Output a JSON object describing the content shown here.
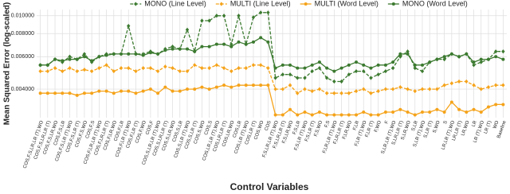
{
  "chart_data": {
    "type": "line",
    "x_label": "Control Variables",
    "y_label": "Mean Squared Error (log-scaled)",
    "log_y": true,
    "grid": true,
    "legend": "top",
    "ylim": [
      0.0028,
      0.0108
    ],
    "yticks": [
      {
        "value": 0.004,
        "label": "0.004000"
      },
      {
        "value": 0.006,
        "label": "0.006000"
      },
      {
        "value": 0.008,
        "label": "0.008000"
      },
      {
        "value": 0.01,
        "label": "0.010000"
      }
    ],
    "categories": [
      "COS,F,S,LR,LR (T),WO",
      "COS,F,S,LR,LR (T)",
      "COS,F,S,LR,WO",
      "COS,F,S,LR",
      "COS,F,S,LR (T),WO",
      "COS,F,S,LR (T)",
      "COS,F,S,WO",
      "COS,F,S",
      "COS,F,LR,LR (T),WO",
      "COS,F,LR,LR (T)",
      "COS,F,LR,WO",
      "COS,F,LR",
      "COS,F,LR (T),WO",
      "COS,F,LR (T)",
      "COS,F,WO",
      "COS,F",
      "COS,S,LR,LR (T),WO",
      "COS,S,LR,LR (T)",
      "COS,S,LR,WO",
      "COS,S,LR",
      "COS,S,LR (T),WO",
      "COS,S,LR (T)",
      "COS,S,WO",
      "COS,S",
      "COS,LR,LR (T),WO",
      "COS,LR,LR (T)",
      "COS,LR,WO",
      "COS,LR",
      "COS,LR (T),WO",
      "COS,LR (T)",
      "COS,WO",
      "COS",
      "F,S,LR,LR (T),WO",
      "F,S,LR,LR (T)",
      "F,S,LR,WO",
      "F,S,LR",
      "F,S,LR (T),WO",
      "F,S,LR (T)",
      "F,S,WO",
      "F,S",
      "F,LR,LR (T),WO",
      "F,LR,LR (T)",
      "F,LR,WO",
      "F,LR",
      "F,LR (T),WO",
      "F,LR (T)",
      "F,WO",
      "F",
      "S,LR,LR (T),WO",
      "S,LR,LR (T)",
      "S,LR,WO",
      "S,LR",
      "S,LR (T),WO",
      "S,LR (T)",
      "S,WO",
      "S",
      "LR,LR (T),WO",
      "LR,LR (T)",
      "LR,WO",
      "LR",
      "LR (T),WO",
      "LR (T)",
      "WO",
      "Baseline"
    ],
    "series": [
      {
        "name": "MONO (Line Level)",
        "color": "#3c7a30",
        "linestyle": "dashed",
        "marker": "diamond",
        "values": [
          0.0054,
          0.0054,
          0.0058,
          0.0056,
          0.006,
          0.0058,
          0.0062,
          0.0056,
          0.006,
          0.0062,
          0.0062,
          0.0062,
          0.0088,
          0.0062,
          0.0062,
          0.0064,
          0.0062,
          0.0066,
          0.0068,
          0.0066,
          0.0084,
          0.0064,
          0.0094,
          0.0094,
          0.01,
          0.01,
          0.007,
          0.01,
          0.007,
          0.0098,
          0.0104,
          0.0104,
          0.0046,
          0.0048,
          0.0048,
          0.0046,
          0.0046,
          0.005,
          0.0052,
          0.0046,
          0.0044,
          0.0044,
          0.0048,
          0.005,
          0.005,
          0.0046,
          0.0048,
          0.005,
          0.0052,
          0.006,
          0.0064,
          0.0052,
          0.005,
          0.0056,
          0.0058,
          0.0058,
          0.0062,
          0.006,
          0.0062,
          0.0054,
          0.0056,
          0.0058,
          0.0064,
          0.0064
        ]
      },
      {
        "name": "MULTI (Line Level)",
        "color": "#f5a31a",
        "linestyle": "dashed",
        "marker": "diamond",
        "values": [
          0.005,
          0.005,
          0.0052,
          0.005,
          0.0052,
          0.005,
          0.0051,
          0.005,
          0.0052,
          0.0054,
          0.005,
          0.0052,
          0.0052,
          0.005,
          0.0052,
          0.0052,
          0.005,
          0.0053,
          0.0052,
          0.005,
          0.005,
          0.0054,
          0.0052,
          0.0052,
          0.0054,
          0.0052,
          0.005,
          0.0052,
          0.0052,
          0.0054,
          0.0054,
          0.0052,
          0.004,
          0.004,
          0.0042,
          0.0038,
          0.004,
          0.0039,
          0.004,
          0.0038,
          0.0038,
          0.0038,
          0.0038,
          0.0039,
          0.004,
          0.0038,
          0.0039,
          0.004,
          0.004,
          0.0041,
          0.004,
          0.0039,
          0.004,
          0.004,
          0.004,
          0.0042,
          0.0043,
          0.0044,
          0.0044,
          0.0042,
          0.004,
          0.0041,
          0.0042,
          0.0042
        ]
      },
      {
        "name": "MULTI (Word Level)",
        "color": "#f5a31a",
        "linestyle": "solid",
        "marker": "circle",
        "values": [
          0.0038,
          0.0038,
          0.0038,
          0.0038,
          0.0038,
          0.0037,
          0.0038,
          0.0038,
          0.0039,
          0.0039,
          0.0038,
          0.0039,
          0.0039,
          0.0038,
          0.0039,
          0.004,
          0.0038,
          0.0041,
          0.0039,
          0.0039,
          0.004,
          0.004,
          0.0041,
          0.004,
          0.0041,
          0.0042,
          0.0041,
          0.0042,
          0.0042,
          0.0042,
          0.0042,
          0.0042,
          0.0029,
          0.0029,
          0.0031,
          0.0029,
          0.003,
          0.0029,
          0.003,
          0.0029,
          0.0029,
          0.0029,
          0.0029,
          0.0029,
          0.003,
          0.0029,
          0.0029,
          0.003,
          0.003,
          0.0031,
          0.003,
          0.0029,
          0.003,
          0.003,
          0.0031,
          0.003,
          0.0034,
          0.0031,
          0.003,
          0.0031,
          0.003,
          0.0032,
          0.0033,
          0.0033
        ]
      },
      {
        "name": "MONO (Word Level)",
        "color": "#3c7a30",
        "linestyle": "solid",
        "marker": "circle",
        "values": [
          0.0054,
          0.0054,
          0.0058,
          0.0057,
          0.0058,
          0.0058,
          0.006,
          0.0057,
          0.006,
          0.0061,
          0.0062,
          0.0062,
          0.0062,
          0.0062,
          0.0061,
          0.0063,
          0.0062,
          0.0065,
          0.0066,
          0.0066,
          0.0066,
          0.0064,
          0.0068,
          0.0068,
          0.007,
          0.007,
          0.0068,
          0.0072,
          0.007,
          0.0072,
          0.0076,
          0.0072,
          0.0052,
          0.0054,
          0.0054,
          0.0052,
          0.0052,
          0.0054,
          0.0056,
          0.0052,
          0.005,
          0.0052,
          0.0054,
          0.0056,
          0.0054,
          0.0052,
          0.0054,
          0.0054,
          0.0056,
          0.0062,
          0.0062,
          0.0054,
          0.0054,
          0.0056,
          0.0058,
          0.006,
          0.0062,
          0.006,
          0.0062,
          0.0056,
          0.0058,
          0.0058,
          0.006,
          0.0058
        ]
      }
    ]
  }
}
